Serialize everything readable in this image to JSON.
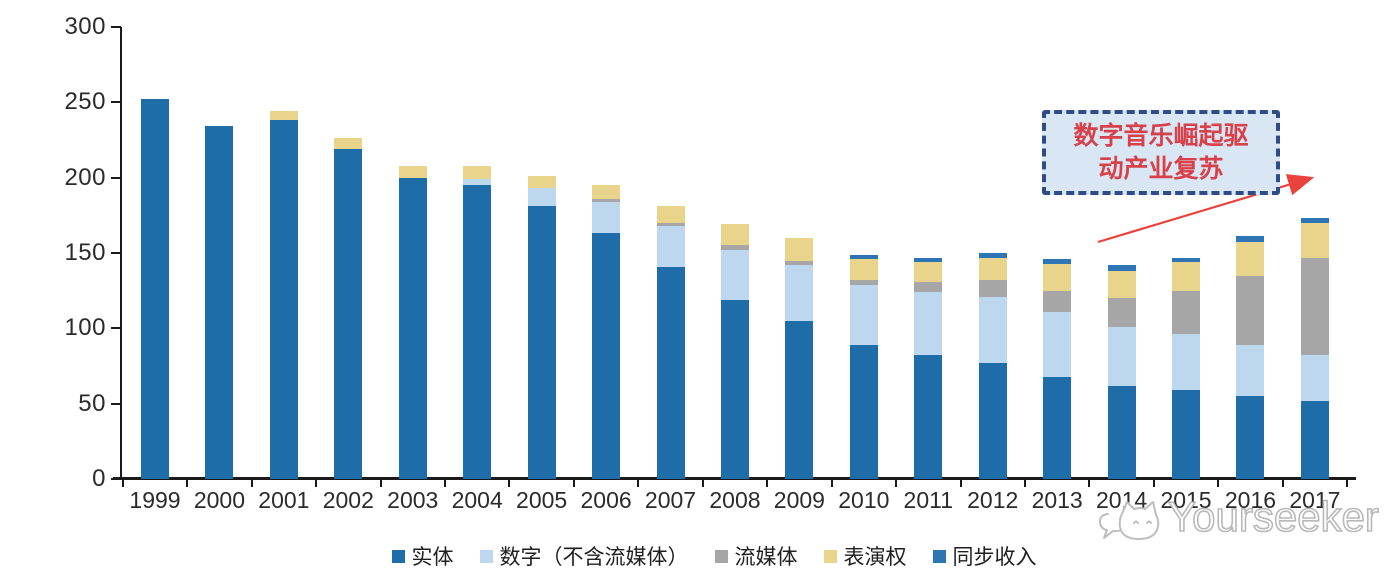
{
  "chart_data": {
    "type": "bar",
    "stacked": true,
    "title": "",
    "xlabel": "",
    "ylabel": "",
    "categories": [
      "1999",
      "2000",
      "2001",
      "2002",
      "2003",
      "2004",
      "2005",
      "2006",
      "2007",
      "2008",
      "2009",
      "2010",
      "2011",
      "2012",
      "2013",
      "2014",
      "2015",
      "2016",
      "2017"
    ],
    "series": [
      {
        "key": "physical",
        "name": "实体",
        "color": "#1e6ca8",
        "values": [
          252,
          234,
          238,
          219,
          200,
          195,
          181,
          163,
          141,
          119,
          105,
          89,
          82,
          77,
          68,
          62,
          59,
          55,
          52
        ]
      },
      {
        "key": "digital",
        "name": "数字（不含流媒体）",
        "color": "#bdd7ee",
        "values": [
          0,
          0,
          0,
          0,
          0,
          4,
          12,
          21,
          27,
          33,
          37,
          40,
          42,
          44,
          43,
          39,
          37,
          34,
          30
        ]
      },
      {
        "key": "streaming",
        "name": "流媒体",
        "color": "#a6a6a6",
        "values": [
          0,
          0,
          0,
          0,
          0,
          0,
          0,
          2,
          2,
          3,
          3,
          3,
          7,
          11,
          14,
          19,
          29,
          46,
          65
        ]
      },
      {
        "key": "performance",
        "name": "表演权",
        "color": "#e8d48b",
        "values": [
          0,
          0,
          6,
          7,
          8,
          9,
          8,
          9,
          11,
          14,
          15,
          14,
          13,
          15,
          18,
          18,
          19,
          22,
          23
        ]
      },
      {
        "key": "sync",
        "name": "同步收入",
        "color": "#2e75b6",
        "values": [
          0,
          0,
          0,
          0,
          0,
          0,
          0,
          0,
          0,
          0,
          0,
          3,
          3,
          3,
          3,
          4,
          3,
          4,
          3
        ]
      }
    ],
    "ylim": [
      0,
      300
    ],
    "yticks": [
      0,
      50,
      100,
      150,
      200,
      250,
      300
    ],
    "grid": false,
    "legend_position": "bottom"
  },
  "annotation": {
    "line1": "数字音乐崛起驱",
    "line2": "动产业复苏",
    "box_border_color": "#2e4c88",
    "box_fill_color": "#d9e7f5",
    "text_color": "#d8414a",
    "arrow_color": "#e9423c"
  },
  "watermark": {
    "text": "Yourseeker",
    "logo": "cat-with-speech-bubble",
    "color": "#b9b9b9"
  }
}
